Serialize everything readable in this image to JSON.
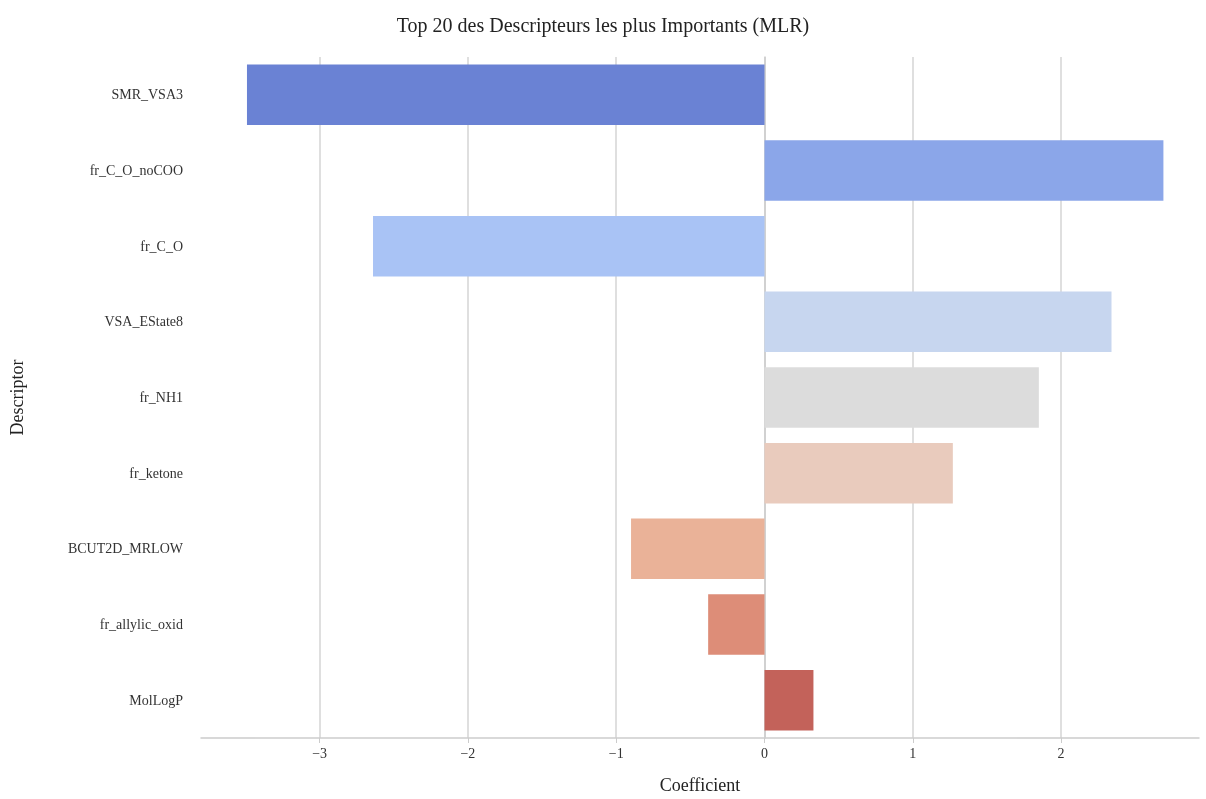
{
  "chart_data": {
    "type": "bar",
    "orientation": "horizontal",
    "title": "Top 20 des Descripteurs les plus Importants (MLR)",
    "xlabel": "Coefficient",
    "ylabel": "Descriptor",
    "categories": [
      "SMR_VSA3",
      "fr_C_O_noCOO",
      "fr_C_O",
      "VSA_EState8",
      "fr_NH1",
      "fr_ketone",
      "BCUT2D_MRLOW",
      "fr_allylic_oxid",
      "MolLogP"
    ],
    "values": [
      -3.49,
      2.69,
      -2.64,
      2.34,
      1.85,
      1.27,
      -0.9,
      -0.38,
      0.33
    ],
    "colors": [
      "#6a82d4",
      "#8ba6e9",
      "#a9c3f5",
      "#c7d6ef",
      "#dcdcdc",
      "#e9cbbd",
      "#eab298",
      "#dd8d78",
      "#c3625a"
    ],
    "xlim": [
      -3.8,
      2.93
    ],
    "xticks": [
      {
        "value": -3,
        "label": "−3"
      },
      {
        "value": -2,
        "label": "−2"
      },
      {
        "value": -1,
        "label": "−1"
      },
      0,
      1,
      2
    ],
    "grid": "x"
  }
}
